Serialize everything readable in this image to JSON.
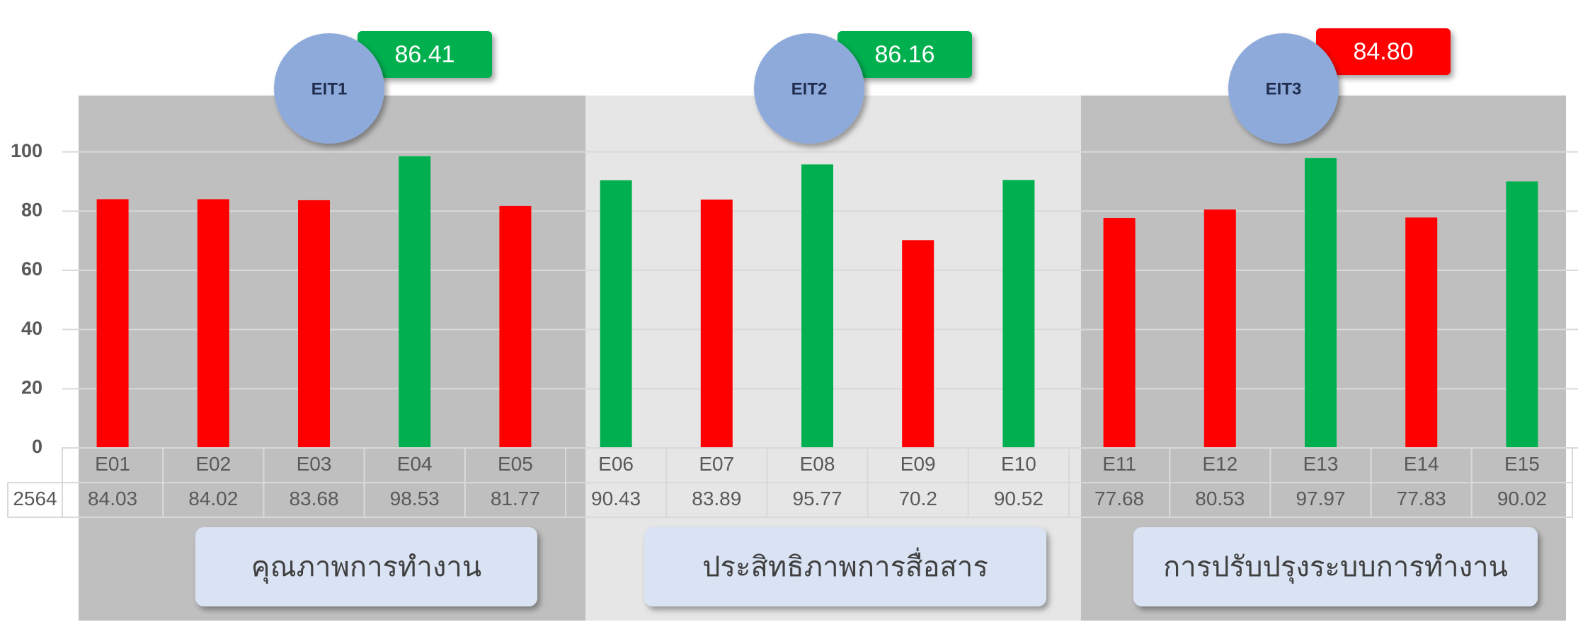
{
  "chart_data": {
    "type": "bar",
    "categories": [
      "E01",
      "E02",
      "E03",
      "E04",
      "E05",
      "E06",
      "E07",
      "E08",
      "E09",
      "E10",
      "E11",
      "E12",
      "E13",
      "E14",
      "E15"
    ],
    "series": [
      {
        "name": "2564",
        "values": [
          84.03,
          84.02,
          83.68,
          98.53,
          81.77,
          90.43,
          83.89,
          95.77,
          70.2,
          90.52,
          77.68,
          80.53,
          97.97,
          77.83,
          90.02
        ],
        "colors": [
          "#ff0000",
          "#ff0000",
          "#ff0000",
          "#00b050",
          "#ff0000",
          "#00b050",
          "#ff0000",
          "#00b050",
          "#ff0000",
          "#00b050",
          "#ff0000",
          "#ff0000",
          "#00b050",
          "#ff0000",
          "#00b050"
        ]
      }
    ],
    "ylim": [
      0,
      120
    ],
    "yticks": [
      0,
      20,
      40,
      60,
      80,
      100
    ],
    "grid": true,
    "groups": {
      "names": [
        "EIT1",
        "EIT2",
        "EIT3"
      ],
      "values": [
        86.41,
        86.16,
        84.8
      ],
      "value_labels": [
        "86.41",
        "86.16",
        "84.80"
      ],
      "colors": [
        "#00b050",
        "#00b050",
        "#ff0000"
      ],
      "labels": [
        "คุณภาพการทำงาน",
        "ประสิทธิภาพการสื่อสาร",
        "การปรับปรุงระบบการทำงาน"
      ]
    }
  }
}
